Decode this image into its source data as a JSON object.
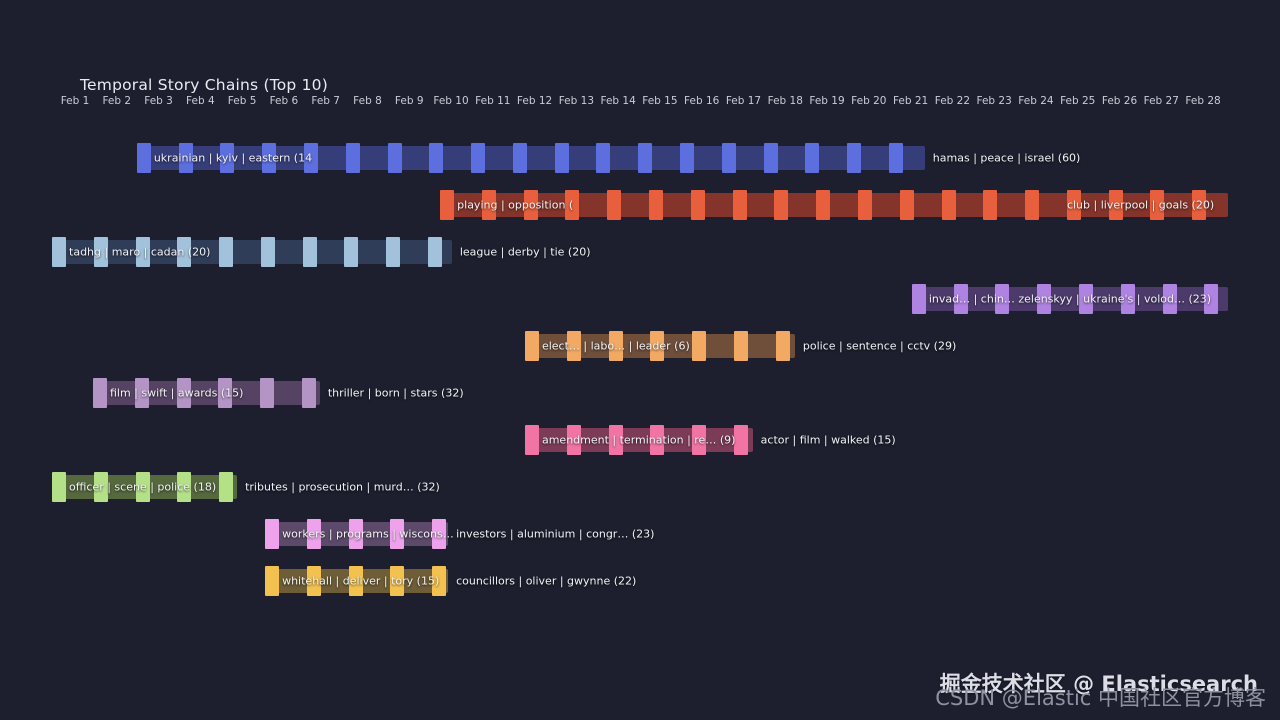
{
  "title": "Temporal Story Chains (Top 10)",
  "watermark": {
    "line1": "掘金技术社区 @ Elasticsearch",
    "line2": "CSDN @Elastic 中国社区官方博客"
  },
  "chart_data": {
    "type": "area",
    "subtype": "temporal-story-chain-timeline",
    "title": "Temporal Story Chains (Top 10)",
    "x_axis": {
      "labels": [
        "Feb 1",
        "Feb 2",
        "Feb 3",
        "Feb 4",
        "Feb 5",
        "Feb 6",
        "Feb 7",
        "Feb 8",
        "Feb 9",
        "Feb 10",
        "Feb 11",
        "Feb 12",
        "Feb 13",
        "Feb 14",
        "Feb 15",
        "Feb 16",
        "Feb 17",
        "Feb 18",
        "Feb 19",
        "Feb 20",
        "Feb 21",
        "Feb 22",
        "Feb 23",
        "Feb 24",
        "Feb 25",
        "Feb 26",
        "Feb 27",
        "Feb 28"
      ],
      "range": [
        "Feb 1",
        "Feb 28"
      ],
      "grid": false
    },
    "legend": "none",
    "chains": [
      {
        "label": "ukrainian | kyiv | eastern (14",
        "end_label": "hamas | peace | israel (60)",
        "end_inside": false,
        "day_start": 2.48,
        "day_end": 21.34,
        "bar_color": "#5d6ede",
        "ribbon_color": "#363e79"
      },
      {
        "label": "playing | opposition (",
        "end_label": "club | liverpool | goals (20)",
        "end_inside": true,
        "day_start": 9.74,
        "day_end": 28.6,
        "bar_color": "#e75f3c",
        "ribbon_color": "#84342a"
      },
      {
        "label": "tadhg | maro | cadan (20)",
        "end_label": "league | derby | tie (20)",
        "end_inside": false,
        "day_start": 0.45,
        "day_end": 10.02,
        "bar_color": "#a2c2dc",
        "ribbon_color": "#2f3d58"
      },
      {
        "label": "invad… | chin… zelenskyy | ukraine's | volod… (23)",
        "end_label": null,
        "end_inside": false,
        "day_start": 21.03,
        "day_end": 28.6,
        "bar_color": "#af83e2",
        "ribbon_color": "#4c3a6b"
      },
      {
        "label": "elect… | labo… | leader (6)",
        "end_label": "police | sentence | cctv (29)",
        "end_inside": false,
        "day_start": 11.77,
        "day_end": 18.23,
        "bar_color": "#f1a964",
        "ribbon_color": "#6f4e3a"
      },
      {
        "label": "film | swift | awards (15)",
        "end_label": "thriller | born | stars (32)",
        "end_inside": false,
        "day_start": 1.43,
        "day_end": 6.86,
        "bar_color": "#b394c4",
        "ribbon_color": "#564363"
      },
      {
        "label": "amendment | termination | re… (9)",
        "end_label": "actor | film | walked (15)",
        "end_inside": false,
        "day_start": 11.77,
        "day_end": 17.22,
        "bar_color": "#f174a4",
        "ribbon_color": "#7c3c57"
      },
      {
        "label": "officer | scene | police (18)",
        "end_label": "tributes | prosecution | murd… (32)",
        "end_inside": false,
        "day_start": 0.45,
        "day_end": 4.88,
        "bar_color": "#b4e187",
        "ribbon_color": "#55683e"
      },
      {
        "label": "workers | programs | wiscons…",
        "end_label": "investors | aluminium | congr… (23)",
        "end_inside": false,
        "day_start": 5.55,
        "day_end": 9.93,
        "bar_color": "#eda2eb",
        "ribbon_color": "#5d4a6b"
      },
      {
        "label": "whitehall | deliver | tory (15)",
        "end_label": "councillors | oliver | gwynne (22)",
        "end_inside": false,
        "day_start": 5.55,
        "day_end": 9.93,
        "bar_color": "#f2c14f",
        "ribbon_color": "#6e5d36"
      }
    ]
  }
}
